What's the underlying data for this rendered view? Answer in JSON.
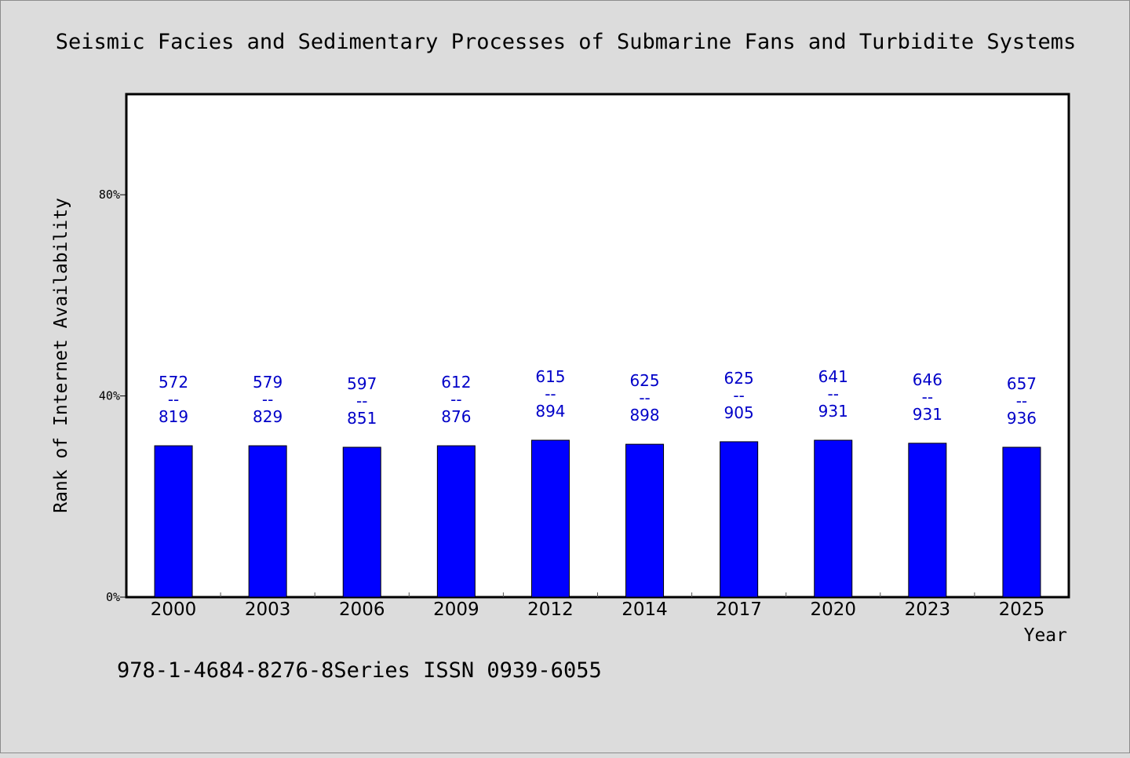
{
  "chart_data": {
    "type": "bar",
    "title": "Seismic Facies and Sedimentary Processes of Submarine Fans and Turbidite Systems",
    "xlabel": "Year",
    "ylabel": "Rank of Internet Availability",
    "categories": [
      "2000",
      "2003",
      "2006",
      "2009",
      "2012",
      "2014",
      "2017",
      "2020",
      "2023",
      "2025"
    ],
    "values": [
      30.1,
      30.1,
      29.8,
      30.1,
      31.2,
      30.4,
      30.9,
      31.2,
      30.6,
      29.8
    ],
    "labels_top": [
      "572",
      "579",
      "597",
      "612",
      "615",
      "625",
      "625",
      "641",
      "646",
      "657"
    ],
    "labels_bottom": [
      "819",
      "829",
      "851",
      "876",
      "894",
      "898",
      "905",
      "931",
      "931",
      "936"
    ],
    "label_separator": "--",
    "yticks": [
      {
        "value": 0,
        "label": "0%"
      },
      {
        "value": 40,
        "label": "40%"
      },
      {
        "value": 80,
        "label": "80%"
      }
    ],
    "ylim": [
      0,
      100
    ],
    "bar_color": "#0000ff",
    "label_color": "#0000c8",
    "grid": false,
    "legend": "none"
  },
  "footer": {
    "text": "978-1-4684-8276-8Series ISSN 0939-6055"
  }
}
